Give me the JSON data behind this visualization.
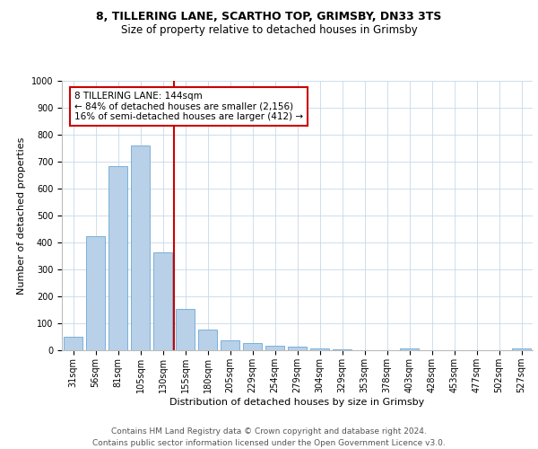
{
  "title_line1": "8, TILLERING LANE, SCARTHO TOP, GRIMSBY, DN33 3TS",
  "title_line2": "Size of property relative to detached houses in Grimsby",
  "xlabel": "Distribution of detached houses by size in Grimsby",
  "ylabel": "Number of detached properties",
  "categories": [
    "31sqm",
    "56sqm",
    "81sqm",
    "105sqm",
    "130sqm",
    "155sqm",
    "180sqm",
    "205sqm",
    "229sqm",
    "254sqm",
    "279sqm",
    "304sqm",
    "329sqm",
    "353sqm",
    "378sqm",
    "403sqm",
    "428sqm",
    "453sqm",
    "477sqm",
    "502sqm",
    "527sqm"
  ],
  "values": [
    50,
    425,
    685,
    760,
    365,
    153,
    77,
    37,
    27,
    18,
    13,
    7,
    2,
    0,
    0,
    8,
    0,
    0,
    0,
    0,
    8
  ],
  "bar_color": "#b8d0e8",
  "bar_edge_color": "#6aaad4",
  "vline_x_index": 4.5,
  "vline_color": "#cc0000",
  "annotation_title": "8 TILLERING LANE: 144sqm",
  "annotation_line2": "← 84% of detached houses are smaller (2,156)",
  "annotation_line3": "16% of semi-detached houses are larger (412) →",
  "annotation_box_color": "#cc0000",
  "ylim": [
    0,
    1000
  ],
  "yticks": [
    0,
    100,
    200,
    300,
    400,
    500,
    600,
    700,
    800,
    900,
    1000
  ],
  "bg_color": "#ffffff",
  "grid_color": "#c8d8e8",
  "footer_line1": "Contains HM Land Registry data © Crown copyright and database right 2024.",
  "footer_line2": "Contains public sector information licensed under the Open Government Licence v3.0.",
  "title_fontsize": 9,
  "subtitle_fontsize": 8.5,
  "axis_label_fontsize": 8,
  "tick_fontsize": 7,
  "annotation_fontsize": 7.5,
  "footer_fontsize": 6.5
}
